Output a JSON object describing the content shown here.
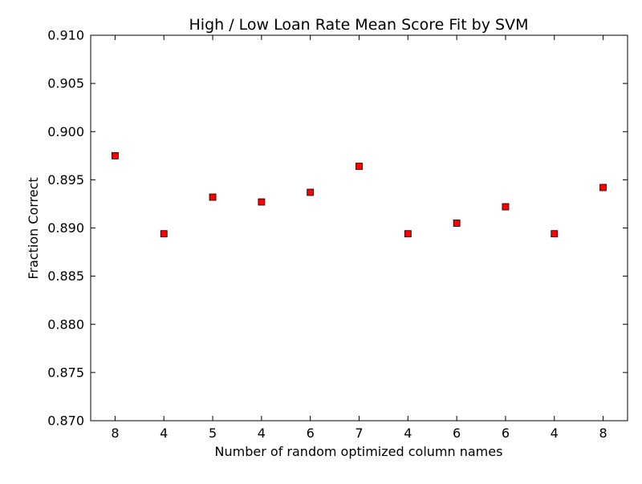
{
  "chart_data": {
    "type": "scatter",
    "title": "High / Low Loan Rate Mean Score Fit by SVM",
    "xlabel": "Number of random optimized column names",
    "ylabel": "Fraction Correct",
    "categories": [
      "8",
      "4",
      "5",
      "4",
      "6",
      "7",
      "4",
      "6",
      "6",
      "4",
      "8"
    ],
    "values": [
      0.8975,
      0.8894,
      0.8932,
      0.8927,
      0.8937,
      0.8964,
      0.8894,
      0.8905,
      0.8922,
      0.8894,
      0.8942
    ],
    "ylim": [
      0.87,
      0.91
    ],
    "yticks": [
      "0.870",
      "0.875",
      "0.880",
      "0.885",
      "0.890",
      "0.895",
      "0.900",
      "0.905",
      "0.910"
    ],
    "marker": "square",
    "marker_color": "#ff0000",
    "marker_edge_color": "#000000",
    "grid": false,
    "legend": "none"
  }
}
